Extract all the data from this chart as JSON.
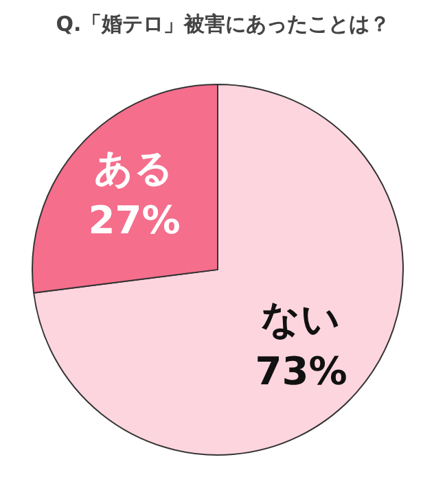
{
  "chart_data": {
    "type": "pie",
    "title": "Q.「婚テロ」被害にあったことは？",
    "categories": [
      "ない",
      "ある"
    ],
    "values": [
      73,
      27
    ],
    "colors": [
      "#fdd5df",
      "#f56e8c"
    ],
    "value_labels": [
      "73%",
      "27%"
    ]
  }
}
